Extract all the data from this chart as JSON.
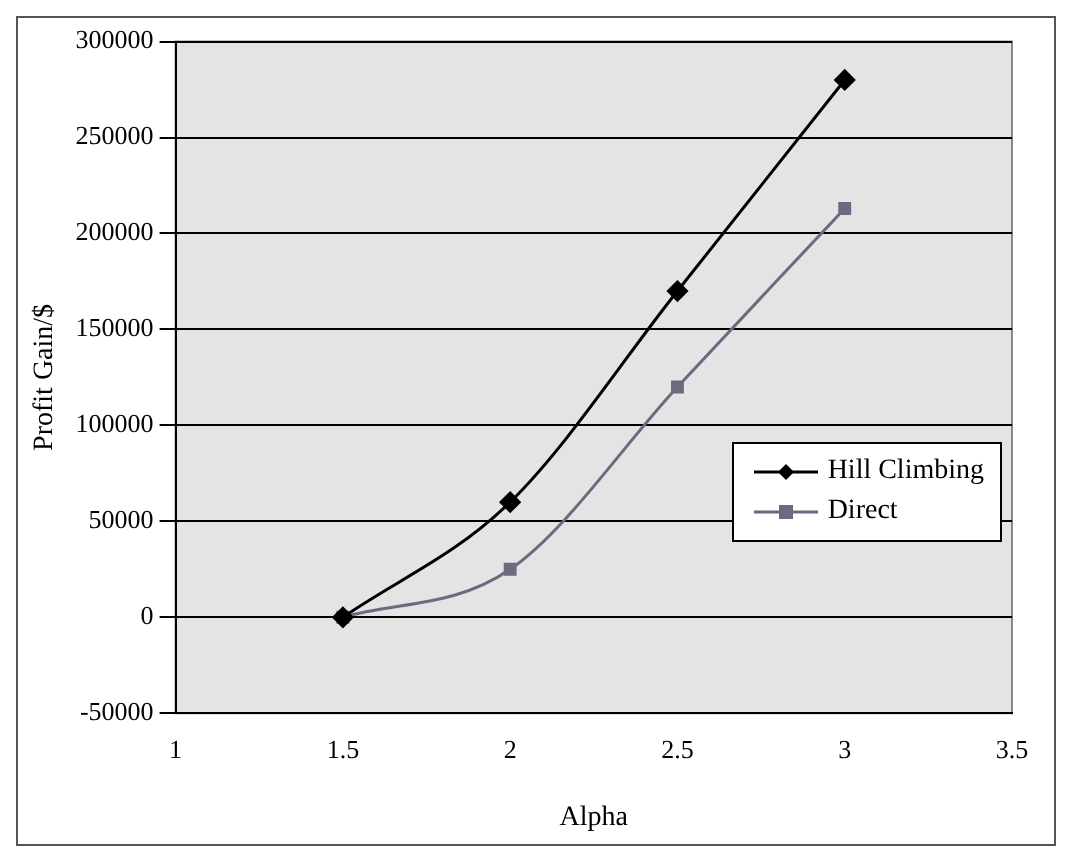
{
  "chart_data": {
    "type": "line",
    "xlabel": "Alpha",
    "ylabel": "Profit Gain/$",
    "x": [
      1.5,
      2,
      2.5,
      3
    ],
    "series": [
      {
        "name": "Hill Climbing",
        "color": "#000000",
        "marker": "diamond",
        "values": [
          0,
          60000,
          170000,
          280000
        ]
      },
      {
        "name": "Direct",
        "color": "#6a6a80",
        "marker": "square",
        "values": [
          0,
          25000,
          120000,
          213000
        ]
      }
    ],
    "xlim": [
      1,
      3.5
    ],
    "xticks": [
      1,
      1.5,
      2,
      2.5,
      3,
      3.5
    ],
    "ylim": [
      -50000,
      300000
    ],
    "yticks": [
      -50000,
      0,
      50000,
      100000,
      150000,
      200000,
      250000,
      300000
    ],
    "grid": "y",
    "legend": "right",
    "line_style": "solid"
  }
}
